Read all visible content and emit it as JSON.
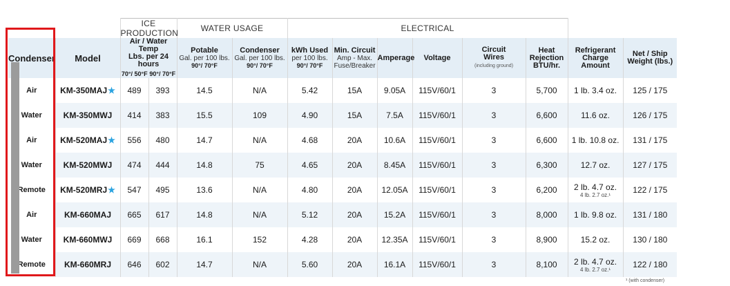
{
  "groups": {
    "ice_production": "ICE PRODUCTION",
    "water_usage": "WATER USAGE",
    "electrical": "ELECTRICAL"
  },
  "headers": {
    "condenser": "Condenser",
    "model": "Model",
    "air_water_title": "Air / Water Temp",
    "air_water_sub": "Lbs. per 24 hours",
    "temp_a": "70°/ 50°F",
    "temp_b": "90°/ 70°F",
    "potable_title": "Potable",
    "potable_sub": "Gal. per 100 lbs.",
    "potable_temp": "90°/ 70°F",
    "condenser_water_title": "Condenser",
    "condenser_water_sub": "Gal. per 100 lbs.",
    "condenser_water_temp": "90°/ 70°F",
    "kwh_title": "kWh Used",
    "kwh_sub": "per 100 lbs.",
    "kwh_temp": "90°/ 70°F",
    "min_circuit_title": "Min. Circuit",
    "min_circuit_sub": "Amp - Max.",
    "min_circuit_sub2": "Fuse/Breaker",
    "amperage": "Amperage",
    "voltage": "Voltage",
    "circuit_wires_title": "Circuit",
    "circuit_wires_sub": "Wires",
    "circuit_wires_tiny": "(including ground)",
    "heat_rejection_1": "Heat",
    "heat_rejection_2": "Rejection",
    "heat_rejection_3": "BTU/hr.",
    "refrigerant_1": "Refrigerant",
    "refrigerant_2": "Charge Amount",
    "weight_1": "Net / Ship",
    "weight_2": "Weight (lbs.)"
  },
  "rows": [
    {
      "condenser": "Air",
      "model": "KM-350MAJ",
      "star": "★",
      "ice_a": "489",
      "ice_b": "393",
      "potable": "14.5",
      "condenser_water": "N/A",
      "kwh": "5.42",
      "min_circuit": "15A",
      "amperage": "9.05A",
      "voltage": "115V/60/1",
      "wires": "3",
      "heat": "5,700",
      "refrigerant": "1 lb. 3.4 oz.",
      "refrigerant_note": "",
      "weight": "125 / 175"
    },
    {
      "condenser": "Water",
      "model": "KM-350MWJ",
      "star": "",
      "ice_a": "414",
      "ice_b": "383",
      "potable": "15.5",
      "condenser_water": "109",
      "kwh": "4.90",
      "min_circuit": "15A",
      "amperage": "7.5A",
      "voltage": "115V/60/1",
      "wires": "3",
      "heat": "6,600",
      "refrigerant": "11.6 oz.",
      "refrigerant_note": "",
      "weight": "126 / 175"
    },
    {
      "condenser": "Air",
      "model": "KM-520MAJ",
      "star": "★",
      "ice_a": "556",
      "ice_b": "480",
      "potable": "14.7",
      "condenser_water": "N/A",
      "kwh": "4.68",
      "min_circuit": "20A",
      "amperage": "10.6A",
      "voltage": "115V/60/1",
      "wires": "3",
      "heat": "6,600",
      "refrigerant": "1 lb. 10.8 oz.",
      "refrigerant_note": "",
      "weight": "131 / 175"
    },
    {
      "condenser": "Water",
      "model": "KM-520MWJ",
      "star": "",
      "ice_a": "474",
      "ice_b": "444",
      "potable": "14.8",
      "condenser_water": "75",
      "kwh": "4.65",
      "min_circuit": "20A",
      "amperage": "8.45A",
      "voltage": "115V/60/1",
      "wires": "3",
      "heat": "6,300",
      "refrigerant": "12.7 oz.",
      "refrigerant_note": "",
      "weight": "127 / 175"
    },
    {
      "condenser": "Remote",
      "model": "KM-520MRJ",
      "star": "★",
      "ice_a": "547",
      "ice_b": "495",
      "potable": "13.6",
      "condenser_water": "N/A",
      "kwh": "4.80",
      "min_circuit": "20A",
      "amperage": "12.05A",
      "voltage": "115V/60/1",
      "wires": "3",
      "heat": "6,200",
      "refrigerant": "2 lb. 4.7 oz.",
      "refrigerant_note": "4 lb. 2.7 oz.¹",
      "weight": "122 / 175"
    },
    {
      "condenser": "Air",
      "model": "KM-660MAJ",
      "star": "",
      "ice_a": "665",
      "ice_b": "617",
      "potable": "14.8",
      "condenser_water": "N/A",
      "kwh": "5.12",
      "min_circuit": "20A",
      "amperage": "15.2A",
      "voltage": "115V/60/1",
      "wires": "3",
      "heat": "8,000",
      "refrigerant": "1 lb. 9.8 oz.",
      "refrigerant_note": "",
      "weight": "131 / 180"
    },
    {
      "condenser": "Water",
      "model": "KM-660MWJ",
      "star": "",
      "ice_a": "669",
      "ice_b": "668",
      "potable": "16.1",
      "condenser_water": "152",
      "kwh": "4.28",
      "min_circuit": "20A",
      "amperage": "12.35A",
      "voltage": "115V/60/1",
      "wires": "3",
      "heat": "8,900",
      "refrigerant": "15.2 oz.",
      "refrigerant_note": "",
      "weight": "130 / 180"
    },
    {
      "condenser": "Remote",
      "model": "KM-660MRJ",
      "star": "",
      "ice_a": "646",
      "ice_b": "602",
      "potable": "14.7",
      "condenser_water": "N/A",
      "kwh": "5.60",
      "min_circuit": "20A",
      "amperage": "16.1A",
      "voltage": "115V/60/1",
      "wires": "3",
      "heat": "8,100",
      "refrigerant": "2 lb. 4.7 oz.",
      "refrigerant_note": "4 lb. 2.7 oz.¹",
      "weight": "122 / 180"
    }
  ],
  "footnote": "¹ (with condenser)",
  "colors": {
    "highlight_box": "#e0181b",
    "star": "#2aa3e0",
    "header_bg": "#e4eef6",
    "alt_row_bg": "#eef4f9",
    "condenser_bar": "#9b9b9b"
  }
}
